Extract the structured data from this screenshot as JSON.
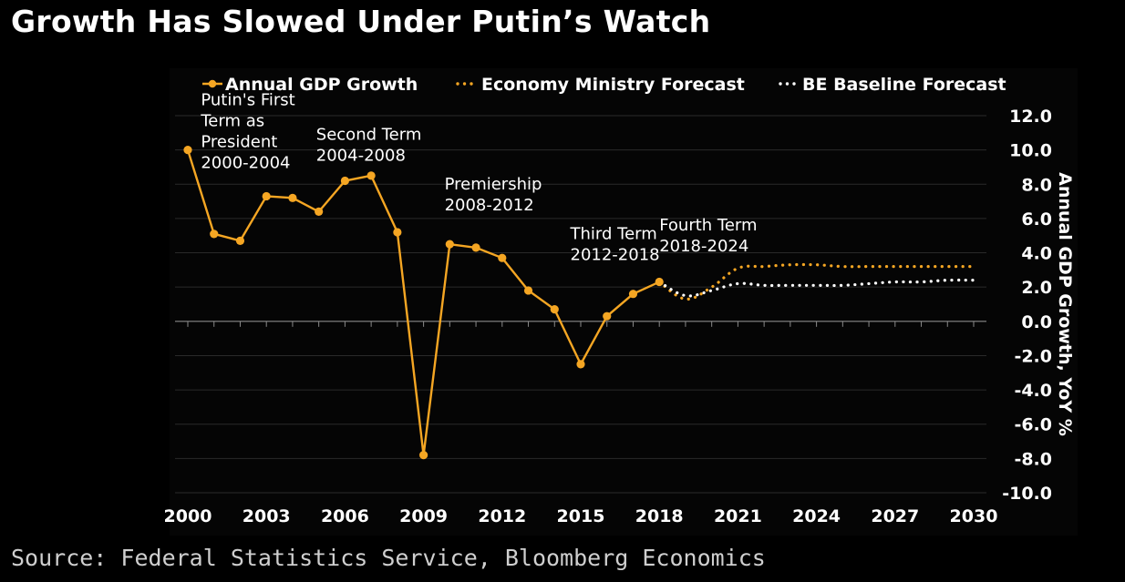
{
  "title": "Growth Has Slowed Under Putin’s Watch",
  "source": "Source: Federal Statistics Service, Bloomberg Economics",
  "colors": {
    "background": "#000000",
    "gdp": "#f5a623",
    "ministry": "#f5a623",
    "baseline": "#ffffff",
    "grid": "#2a2a2a",
    "zero": "#8a8a8a"
  },
  "chart_data": {
    "type": "line",
    "xlabel": "",
    "ylabel": "Annual GDP Growth, YoY %",
    "xlim": [
      2000,
      2030
    ],
    "ylim": [
      -10,
      12
    ],
    "x_ticks": [
      "2000",
      "2003",
      "2006",
      "2009",
      "2012",
      "2015",
      "2018",
      "2021",
      "2024",
      "2027",
      "2030"
    ],
    "y_ticks": [
      "12.0",
      "10.0",
      "8.0",
      "6.0",
      "4.0",
      "2.0",
      "0.0",
      "-2.0",
      "-4.0",
      "-6.0",
      "-8.0",
      "-10.0"
    ],
    "y_axis_side": "right",
    "legend_placement": "top",
    "grid": true,
    "series": [
      {
        "name": "Annual GDP Growth",
        "style": "solid-markers",
        "x": [
          2000,
          2001,
          2002,
          2003,
          2004,
          2005,
          2006,
          2007,
          2008,
          2009,
          2010,
          2011,
          2012,
          2013,
          2014,
          2015,
          2016,
          2017,
          2018
        ],
        "values": [
          10.0,
          5.1,
          4.7,
          7.3,
          7.2,
          6.4,
          8.2,
          8.5,
          5.2,
          -7.8,
          4.5,
          4.3,
          3.7,
          1.8,
          0.7,
          -2.5,
          0.3,
          1.6,
          2.3
        ]
      },
      {
        "name": "Economy Ministry Forecast",
        "style": "dotted",
        "x": [
          2018,
          2019,
          2020,
          2021,
          2022,
          2023,
          2024,
          2025,
          2026,
          2027,
          2028,
          2029,
          2030
        ],
        "values": [
          2.3,
          1.3,
          2.0,
          3.1,
          3.2,
          3.3,
          3.3,
          3.2,
          3.2,
          3.2,
          3.2,
          3.2,
          3.2
        ]
      },
      {
        "name": "BE Baseline Forecast",
        "style": "dotted",
        "x": [
          2018,
          2019,
          2020,
          2021,
          2022,
          2023,
          2024,
          2025,
          2026,
          2027,
          2028,
          2029,
          2030
        ],
        "values": [
          2.3,
          1.5,
          1.8,
          2.2,
          2.1,
          2.1,
          2.1,
          2.1,
          2.2,
          2.3,
          2.3,
          2.4,
          2.4
        ]
      }
    ],
    "annotations": [
      {
        "lines": [
          "Putin's First",
          "Term as",
          "President",
          "2000-2004"
        ],
        "x": 2000.5,
        "y": 12.6
      },
      {
        "lines": [
          "Second Term",
          "2004-2008"
        ],
        "x": 2004.9,
        "y": 10.6
      },
      {
        "lines": [
          "Premiership",
          "2008-2012"
        ],
        "x": 2009.8,
        "y": 7.7
      },
      {
        "lines": [
          "Third Term",
          "2012-2018"
        ],
        "x": 2014.6,
        "y": 4.8
      },
      {
        "lines": [
          "Fourth Term",
          "2018-2024"
        ],
        "x": 2018.0,
        "y": 5.3
      }
    ]
  }
}
